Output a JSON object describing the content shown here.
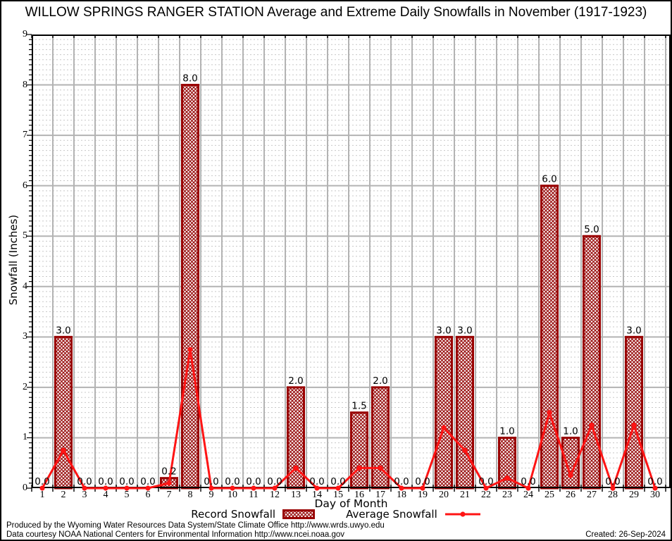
{
  "title": "WILLOW SPRINGS RANGER STATION Average and Extreme Daily Snowfalls in November (1917-1923)",
  "chart_data": {
    "type": "bar",
    "title": "WILLOW SPRINGS RANGER STATION Average and Extreme Daily Snowfalls in November (1917-1923)",
    "xlabel": "Day of Month",
    "ylabel": "Snowfall (Inches)",
    "ylim": [
      0,
      9
    ],
    "y_tick_labels": [
      "0",
      "1",
      "2",
      "3",
      "4",
      "5",
      "6",
      "7",
      "8",
      "9"
    ],
    "categories": [
      1,
      2,
      3,
      4,
      5,
      6,
      7,
      8,
      9,
      10,
      11,
      12,
      13,
      14,
      15,
      16,
      17,
      18,
      19,
      20,
      21,
      22,
      23,
      24,
      25,
      26,
      27,
      28,
      29,
      30
    ],
    "grid": true,
    "legend_position": "bottom",
    "series": [
      {
        "name": "Record Snowfall",
        "type": "bar",
        "values": [
          0.0,
          3.0,
          0.0,
          0.0,
          0.0,
          0.0,
          0.2,
          8.0,
          0.0,
          0.0,
          0.0,
          0.0,
          2.0,
          0.0,
          0.0,
          1.5,
          2.0,
          0.0,
          0.0,
          3.0,
          3.0,
          0.0,
          1.0,
          0.0,
          6.0,
          1.0,
          5.0,
          0.0,
          3.0,
          0.0
        ],
        "value_labels": [
          "0.0",
          "3.0",
          "0.0",
          "0.0",
          "0.0",
          "0.0",
          "0.2",
          "8.0",
          "0.0",
          "0.0",
          "0.0",
          "0.0",
          "2.0",
          "0.0",
          "0.0",
          "1.5",
          "2.0",
          "0.0",
          "0.0",
          "3.0",
          "3.0",
          "0.0",
          "1.0",
          "0.0",
          "6.0",
          "1.0",
          "5.0",
          "0.0",
          "3.0",
          "0.0"
        ]
      },
      {
        "name": "Average Snowfall",
        "type": "line",
        "values": [
          0.0,
          0.75,
          0.0,
          0.0,
          0.0,
          0.0,
          0.1,
          2.75,
          0.0,
          0.0,
          0.0,
          0.0,
          0.4,
          0.0,
          0.0,
          0.4,
          0.4,
          0.0,
          0.0,
          1.2,
          0.75,
          0.0,
          0.2,
          0.0,
          1.5,
          0.25,
          1.25,
          0.0,
          1.25,
          0.0
        ]
      }
    ]
  },
  "footer": {
    "line1": "Produced by the Wyoming Water Resources Data System/State Climate Office http://www.wrds.uwyo.edu",
    "line2": "Data courtesy NOAA National Centers for Environmental Information http://www.ncei.noaa.gov",
    "created": "Created: 26-Sep-2024"
  },
  "colors": {
    "bar_border": "#990000",
    "bar_hatch": "#991111",
    "average_line": "#ff1414",
    "grid_major": "#b3b3b3",
    "grid_minor": "#c8c8c8",
    "axis": "#000000",
    "background": "#ffffff",
    "text": "#000000"
  }
}
